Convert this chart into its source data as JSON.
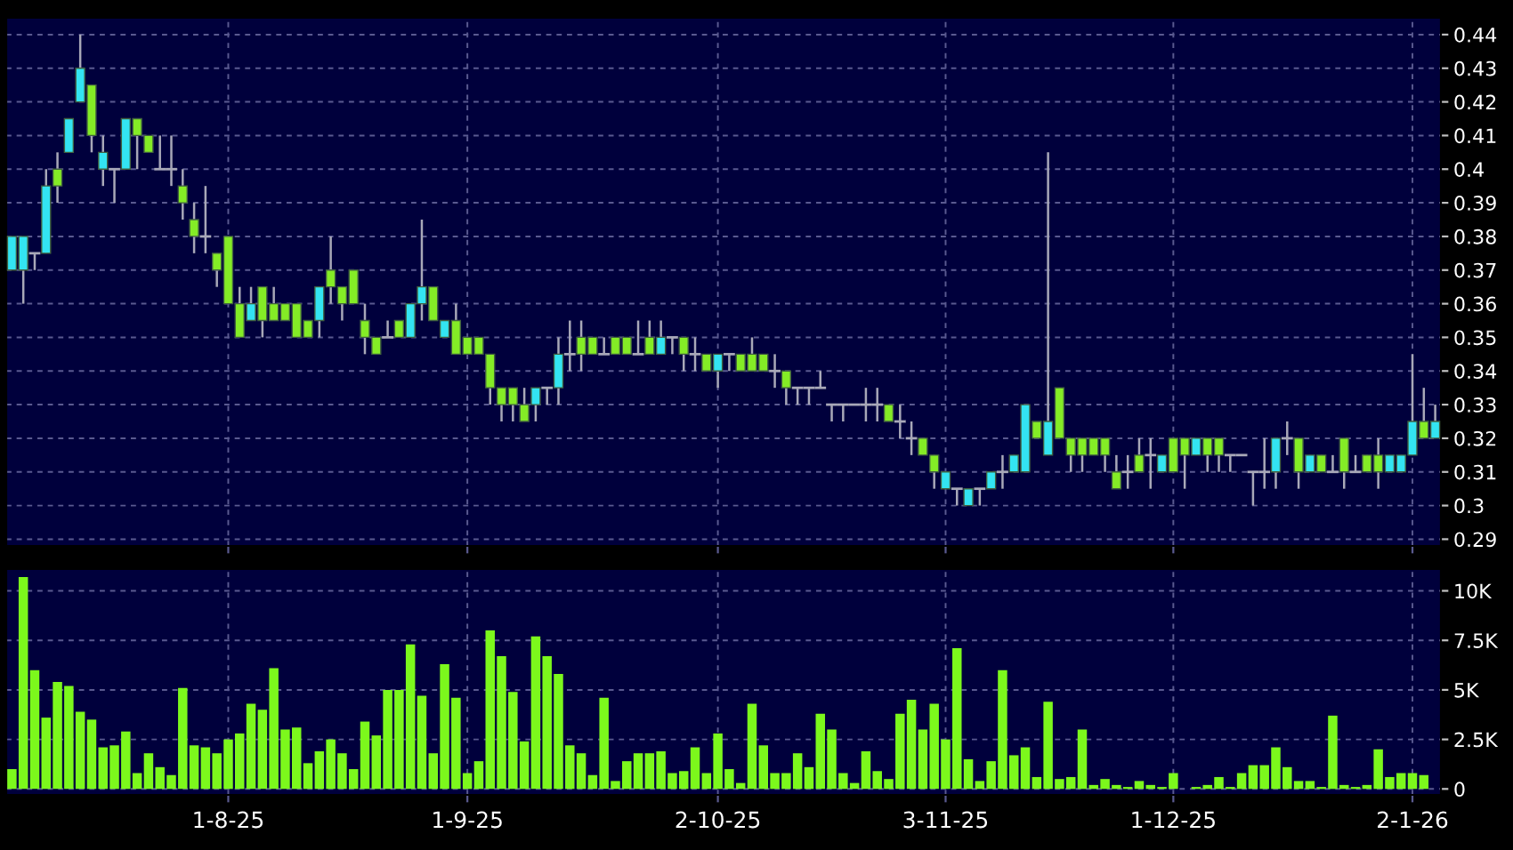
{
  "chart_data": [
    {
      "type": "candlestick",
      "tick_labels": "y",
      "grid": true,
      "categories": [
        null,
        null,
        null,
        null,
        null,
        null,
        null,
        null,
        null,
        null,
        null,
        null,
        null,
        null,
        null,
        null,
        null,
        null,
        null,
        null,
        null,
        null,
        null,
        null,
        null,
        null,
        null,
        null,
        null,
        null,
        null,
        null,
        null,
        null,
        null,
        null,
        null,
        null,
        null,
        null,
        null,
        null,
        null,
        null,
        null,
        null,
        null,
        null,
        null,
        null,
        null,
        null,
        null,
        null,
        null,
        null,
        null,
        null,
        null,
        null,
        null,
        null,
        null,
        null,
        null,
        null,
        null,
        null,
        null,
        null,
        null,
        null,
        null,
        null,
        null,
        null,
        null,
        null,
        null,
        null,
        null,
        null,
        null,
        null,
        null,
        null,
        null,
        null,
        null,
        null,
        null,
        null,
        null,
        null,
        null,
        null,
        null,
        null,
        null,
        null,
        null,
        null,
        null,
        null,
        null,
        null,
        null,
        null,
        null,
        null,
        null,
        null,
        null,
        null,
        null,
        null,
        null,
        null,
        null,
        null,
        null,
        null,
        null,
        null,
        null,
        null
      ],
      "ohlc": [
        [
          0.37,
          0.38,
          0.37,
          0.38
        ],
        [
          0.37,
          0.38,
          0.36,
          0.38
        ],
        [
          0.375,
          0.375,
          0.37,
          0.375
        ],
        [
          0.375,
          0.4,
          0.375,
          0.395
        ],
        [
          0.4,
          0.405,
          0.39,
          0.395
        ],
        [
          0.405,
          0.415,
          0.405,
          0.415
        ],
        [
          0.42,
          0.44,
          0.42,
          0.43
        ],
        [
          0.425,
          0.425,
          0.405,
          0.41
        ],
        [
          0.4,
          0.41,
          0.395,
          0.405
        ],
        [
          0.4,
          0.4,
          0.39,
          0.4
        ],
        [
          0.4,
          0.415,
          0.4,
          0.415
        ],
        [
          0.415,
          0.415,
          0.4,
          0.41
        ],
        [
          0.41,
          0.41,
          0.405,
          0.405
        ],
        [
          0.4,
          0.41,
          0.4,
          0.4
        ],
        [
          0.4,
          0.41,
          0.395,
          0.4
        ],
        [
          0.395,
          0.4,
          0.385,
          0.39
        ],
        [
          0.385,
          0.39,
          0.375,
          0.38
        ],
        [
          0.38,
          0.395,
          0.375,
          0.38
        ],
        [
          0.375,
          0.375,
          0.365,
          0.37
        ],
        [
          0.38,
          0.38,
          0.36,
          0.36
        ],
        [
          0.36,
          0.365,
          0.35,
          0.35
        ],
        [
          0.355,
          0.365,
          0.355,
          0.36
        ],
        [
          0.365,
          0.365,
          0.35,
          0.355
        ],
        [
          0.36,
          0.365,
          0.355,
          0.355
        ],
        [
          0.36,
          0.36,
          0.355,
          0.355
        ],
        [
          0.36,
          0.36,
          0.35,
          0.35
        ],
        [
          0.355,
          0.355,
          0.35,
          0.35
        ],
        [
          0.355,
          0.365,
          0.35,
          0.365
        ],
        [
          0.37,
          0.38,
          0.36,
          0.365
        ],
        [
          0.365,
          0.365,
          0.355,
          0.36
        ],
        [
          0.37,
          0.37,
          0.36,
          0.36
        ],
        [
          0.355,
          0.36,
          0.345,
          0.35
        ],
        [
          0.35,
          0.35,
          0.345,
          0.345
        ],
        [
          0.35,
          0.355,
          0.35,
          0.35
        ],
        [
          0.355,
          0.355,
          0.35,
          0.35
        ],
        [
          0.35,
          0.36,
          0.35,
          0.36
        ],
        [
          0.36,
          0.385,
          0.355,
          0.365
        ],
        [
          0.365,
          0.365,
          0.355,
          0.355
        ],
        [
          0.35,
          0.355,
          0.35,
          0.355
        ],
        [
          0.355,
          0.36,
          0.345,
          0.345
        ],
        [
          0.35,
          0.35,
          0.345,
          0.345
        ],
        [
          0.35,
          0.35,
          0.345,
          0.345
        ],
        [
          0.345,
          0.345,
          0.33,
          0.335
        ],
        [
          0.335,
          0.335,
          0.325,
          0.33
        ],
        [
          0.335,
          0.335,
          0.325,
          0.33
        ],
        [
          0.33,
          0.335,
          0.325,
          0.325
        ],
        [
          0.33,
          0.335,
          0.325,
          0.335
        ],
        [
          0.335,
          0.335,
          0.33,
          0.335
        ],
        [
          0.335,
          0.35,
          0.33,
          0.345
        ],
        [
          0.345,
          0.355,
          0.34,
          0.345
        ],
        [
          0.35,
          0.355,
          0.34,
          0.345
        ],
        [
          0.35,
          0.35,
          0.345,
          0.345
        ],
        [
          0.345,
          0.35,
          0.345,
          0.345
        ],
        [
          0.35,
          0.35,
          0.345,
          0.345
        ],
        [
          0.35,
          0.35,
          0.345,
          0.345
        ],
        [
          0.345,
          0.355,
          0.345,
          0.345
        ],
        [
          0.35,
          0.355,
          0.345,
          0.345
        ],
        [
          0.345,
          0.355,
          0.345,
          0.35
        ],
        [
          0.35,
          0.35,
          0.345,
          0.35
        ],
        [
          0.35,
          0.35,
          0.34,
          0.345
        ],
        [
          0.345,
          0.35,
          0.34,
          0.345
        ],
        [
          0.345,
          0.345,
          0.34,
          0.34
        ],
        [
          0.34,
          0.345,
          0.335,
          0.345
        ],
        [
          0.345,
          0.345,
          0.34,
          0.345
        ],
        [
          0.345,
          0.345,
          0.34,
          0.34
        ],
        [
          0.345,
          0.35,
          0.34,
          0.34
        ],
        [
          0.345,
          0.345,
          0.34,
          0.34
        ],
        [
          0.34,
          0.345,
          0.335,
          0.34
        ],
        [
          0.34,
          0.34,
          0.33,
          0.335
        ],
        [
          0.335,
          0.335,
          0.33,
          0.335
        ],
        [
          0.335,
          0.335,
          0.33,
          0.335
        ],
        [
          0.335,
          0.34,
          0.335,
          0.335
        ],
        [
          0.33,
          0.33,
          0.325,
          0.33
        ],
        [
          0.33,
          0.33,
          0.325,
          0.33
        ],
        [
          0.33,
          0.33,
          0.33,
          0.33
        ],
        [
          0.33,
          0.335,
          0.325,
          0.33
        ],
        [
          0.33,
          0.335,
          0.325,
          0.33
        ],
        [
          0.33,
          0.33,
          0.325,
          0.325
        ],
        [
          0.325,
          0.33,
          0.32,
          0.325
        ],
        [
          0.32,
          0.325,
          0.315,
          0.32
        ],
        [
          0.32,
          0.32,
          0.315,
          0.315
        ],
        [
          0.315,
          0.315,
          0.305,
          0.31
        ],
        [
          0.305,
          0.31,
          0.305,
          0.31
        ],
        [
          0.305,
          0.305,
          0.3,
          0.305
        ],
        [
          0.3,
          0.305,
          0.3,
          0.305
        ],
        [
          0.305,
          0.305,
          0.3,
          0.305
        ],
        [
          0.305,
          0.31,
          0.305,
          0.31
        ],
        [
          0.31,
          0.315,
          0.305,
          0.31
        ],
        [
          0.31,
          0.315,
          0.31,
          0.315
        ],
        [
          0.31,
          0.33,
          0.31,
          0.33
        ],
        [
          0.325,
          0.325,
          0.32,
          0.32
        ],
        [
          0.315,
          0.405,
          0.315,
          0.325
        ],
        [
          0.335,
          0.335,
          0.32,
          0.32
        ],
        [
          0.32,
          0.32,
          0.31,
          0.315
        ],
        [
          0.32,
          0.32,
          0.31,
          0.315
        ],
        [
          0.32,
          0.32,
          0.315,
          0.315
        ],
        [
          0.32,
          0.32,
          0.31,
          0.315
        ],
        [
          0.31,
          0.315,
          0.305,
          0.305
        ],
        [
          0.31,
          0.315,
          0.305,
          0.31
        ],
        [
          0.315,
          0.32,
          0.31,
          0.31
        ],
        [
          0.315,
          0.32,
          0.305,
          0.315
        ],
        [
          0.31,
          0.315,
          0.31,
          0.315
        ],
        [
          0.32,
          0.32,
          0.31,
          0.31
        ],
        [
          0.32,
          0.32,
          0.305,
          0.315
        ],
        [
          0.315,
          0.32,
          0.315,
          0.32
        ],
        [
          0.32,
          0.32,
          0.31,
          0.315
        ],
        [
          0.32,
          0.32,
          0.31,
          0.315
        ],
        [
          0.315,
          0.315,
          0.31,
          0.315
        ],
        [
          0.315,
          0.315,
          0.315,
          0.315
        ],
        [
          0.31,
          0.31,
          0.3,
          0.31
        ],
        [
          0.31,
          0.32,
          0.305,
          0.31
        ],
        [
          0.31,
          0.32,
          0.305,
          0.32
        ],
        [
          0.32,
          0.325,
          0.315,
          0.32
        ],
        [
          0.32,
          0.32,
          0.305,
          0.31
        ],
        [
          0.31,
          0.315,
          0.31,
          0.315
        ],
        [
          0.315,
          0.315,
          0.31,
          0.31
        ],
        [
          0.31,
          0.315,
          0.31,
          0.31
        ],
        [
          0.32,
          0.32,
          0.305,
          0.31
        ],
        [
          0.31,
          0.315,
          0.31,
          0.31
        ],
        [
          0.315,
          0.315,
          0.31,
          0.31
        ],
        [
          0.315,
          0.32,
          0.305,
          0.31
        ],
        [
          0.31,
          0.315,
          0.31,
          0.315
        ],
        [
          0.31,
          0.315,
          0.31,
          0.315
        ],
        [
          0.315,
          0.345,
          0.315,
          0.325
        ],
        [
          0.325,
          0.335,
          0.32,
          0.32
        ],
        [
          0.32,
          0.33,
          0.32,
          0.325
        ]
      ],
      "colors": [
        "#33e4f2",
        "#33e4f2",
        "#a8a8b8",
        "#33e4f2",
        "#84ec26",
        "#33e4f2",
        "#33e4f2",
        "#84ec26",
        "#33e4f2",
        "#a8a8b8",
        "#33e4f2",
        "#84ec26",
        "#84ec26",
        "#a8a8b8",
        "#a8a8b8",
        "#84ec26",
        "#84ec26",
        "#a8a8b8",
        "#84ec26",
        "#84ec26",
        "#84ec26",
        "#33e4f2",
        "#84ec26",
        "#84ec26",
        "#84ec26",
        "#84ec26",
        "#84ec26",
        "#33e4f2",
        "#84ec26",
        "#84ec26",
        "#84ec26",
        "#84ec26",
        "#84ec26",
        "#a8a8b8",
        "#84ec26",
        "#33e4f2",
        "#33e4f2",
        "#84ec26",
        "#33e4f2",
        "#84ec26",
        "#84ec26",
        "#84ec26",
        "#84ec26",
        "#84ec26",
        "#84ec26",
        "#84ec26",
        "#33e4f2",
        "#a8a8b8",
        "#33e4f2",
        "#a8a8b8",
        "#84ec26",
        "#84ec26",
        "#a8a8b8",
        "#84ec26",
        "#84ec26",
        "#a8a8b8",
        "#84ec26",
        "#33e4f2",
        "#a8a8b8",
        "#84ec26",
        "#a8a8b8",
        "#84ec26",
        "#33e4f2",
        "#a8a8b8",
        "#84ec26",
        "#84ec26",
        "#84ec26",
        "#a8a8b8",
        "#84ec26",
        "#a8a8b8",
        "#a8a8b8",
        "#a8a8b8",
        "#a8a8b8",
        "#a8a8b8",
        "#a8a8b8",
        "#a8a8b8",
        "#a8a8b8",
        "#84ec26",
        "#a8a8b8",
        "#a8a8b8",
        "#84ec26",
        "#84ec26",
        "#33e4f2",
        "#a8a8b8",
        "#33e4f2",
        "#a8a8b8",
        "#33e4f2",
        "#a8a8b8",
        "#33e4f2",
        "#33e4f2",
        "#84ec26",
        "#33e4f2",
        "#84ec26",
        "#84ec26",
        "#84ec26",
        "#84ec26",
        "#84ec26",
        "#84ec26",
        "#a8a8b8",
        "#84ec26",
        "#a8a8b8",
        "#33e4f2",
        "#84ec26",
        "#84ec26",
        "#33e4f2",
        "#84ec26",
        "#84ec26",
        "#a8a8b8",
        "#a8a8b8",
        "#a8a8b8",
        "#a8a8b8",
        "#33e4f2",
        "#a8a8b8",
        "#84ec26",
        "#33e4f2",
        "#84ec26",
        "#a8a8b8",
        "#84ec26",
        "#a8a8b8",
        "#84ec26",
        "#84ec26",
        "#33e4f2",
        "#33e4f2",
        "#33e4f2",
        "#84ec26",
        "#33e4f2"
      ],
      "ylim": [
        0.288,
        0.445
      ],
      "yticks": [
        0.29,
        0.3,
        0.31,
        0.32,
        0.33,
        0.34,
        0.35,
        0.36,
        0.37,
        0.38,
        0.39,
        0.4,
        0.41,
        0.42,
        0.43,
        0.44
      ]
    },
    {
      "type": "bar",
      "grid": true,
      "color": "#7cf81c",
      "categories": [
        null,
        null,
        null,
        null,
        null,
        null,
        null,
        null,
        null,
        null,
        null,
        null,
        null,
        null,
        null,
        null,
        null,
        null,
        null,
        "1-8-25",
        null,
        null,
        null,
        null,
        null,
        null,
        null,
        null,
        null,
        null,
        null,
        null,
        null,
        null,
        null,
        null,
        null,
        null,
        null,
        null,
        "1-9-25",
        null,
        null,
        null,
        null,
        null,
        null,
        null,
        null,
        null,
        null,
        null,
        null,
        null,
        null,
        null,
        null,
        null,
        null,
        null,
        null,
        null,
        "2-10-25",
        null,
        null,
        null,
        null,
        null,
        null,
        null,
        null,
        null,
        null,
        null,
        null,
        null,
        null,
        null,
        null,
        null,
        null,
        null,
        "3-11-25",
        null,
        null,
        null,
        null,
        null,
        null,
        null,
        null,
        null,
        null,
        null,
        null,
        null,
        null,
        null,
        null,
        null,
        null,
        null,
        "1-12-25",
        null,
        null,
        null,
        null,
        null,
        null,
        null,
        null,
        null,
        null,
        null,
        null,
        null,
        null,
        null,
        null,
        null,
        null,
        null,
        null,
        "2-1-26",
        null,
        null
      ],
      "values": [
        1.0,
        10.7,
        6.0,
        3.6,
        5.4,
        5.2,
        3.9,
        3.5,
        2.1,
        2.2,
        2.9,
        0.8,
        1.8,
        1.1,
        0.7,
        5.1,
        2.2,
        2.1,
        1.8,
        2.5,
        2.8,
        4.3,
        4.0,
        6.1,
        3.0,
        3.1,
        1.3,
        1.9,
        2.5,
        1.8,
        1.0,
        3.4,
        2.7,
        5.0,
        5.0,
        7.3,
        4.7,
        1.8,
        6.3,
        4.6,
        0.8,
        1.4,
        8.0,
        6.7,
        4.9,
        2.4,
        7.7,
        6.7,
        5.8,
        2.2,
        1.8,
        0.7,
        4.6,
        0.4,
        1.4,
        1.8,
        1.8,
        1.9,
        0.8,
        0.9,
        2.1,
        0.8,
        2.8,
        1.0,
        0.3,
        4.3,
        2.2,
        0.8,
        0.8,
        1.8,
        1.1,
        3.8,
        3.0,
        0.8,
        0.3,
        1.9,
        0.9,
        0.5,
        3.8,
        4.5,
        3.0,
        4.3,
        2.5,
        7.1,
        1.5,
        0.4,
        1.4,
        6.0,
        1.7,
        2.1,
        0.6,
        4.4,
        0.5,
        0.6,
        3.0,
        0.2,
        0.5,
        0.2,
        0.1,
        0.4,
        0.2,
        0.1,
        0.8,
        0,
        0.1,
        0.2,
        0.6,
        0.1,
        0.8,
        1.2,
        1.2,
        2.1,
        1.1,
        0.4,
        0.4,
        0.1,
        3.7,
        0.2,
        0.1,
        0.2,
        2.0,
        0.6,
        0.8,
        0.8,
        0.7,
        null
      ],
      "ylim": [
        -0.3,
        11.1
      ],
      "yticks": [
        0,
        {
          "value": 2.5,
          "label": "2.5K"
        },
        {
          "value": 5,
          "label": "5K"
        },
        {
          "value": 7.5,
          "label": "7.5K"
        },
        {
          "value": 10,
          "label": "10K"
        }
      ]
    }
  ]
}
